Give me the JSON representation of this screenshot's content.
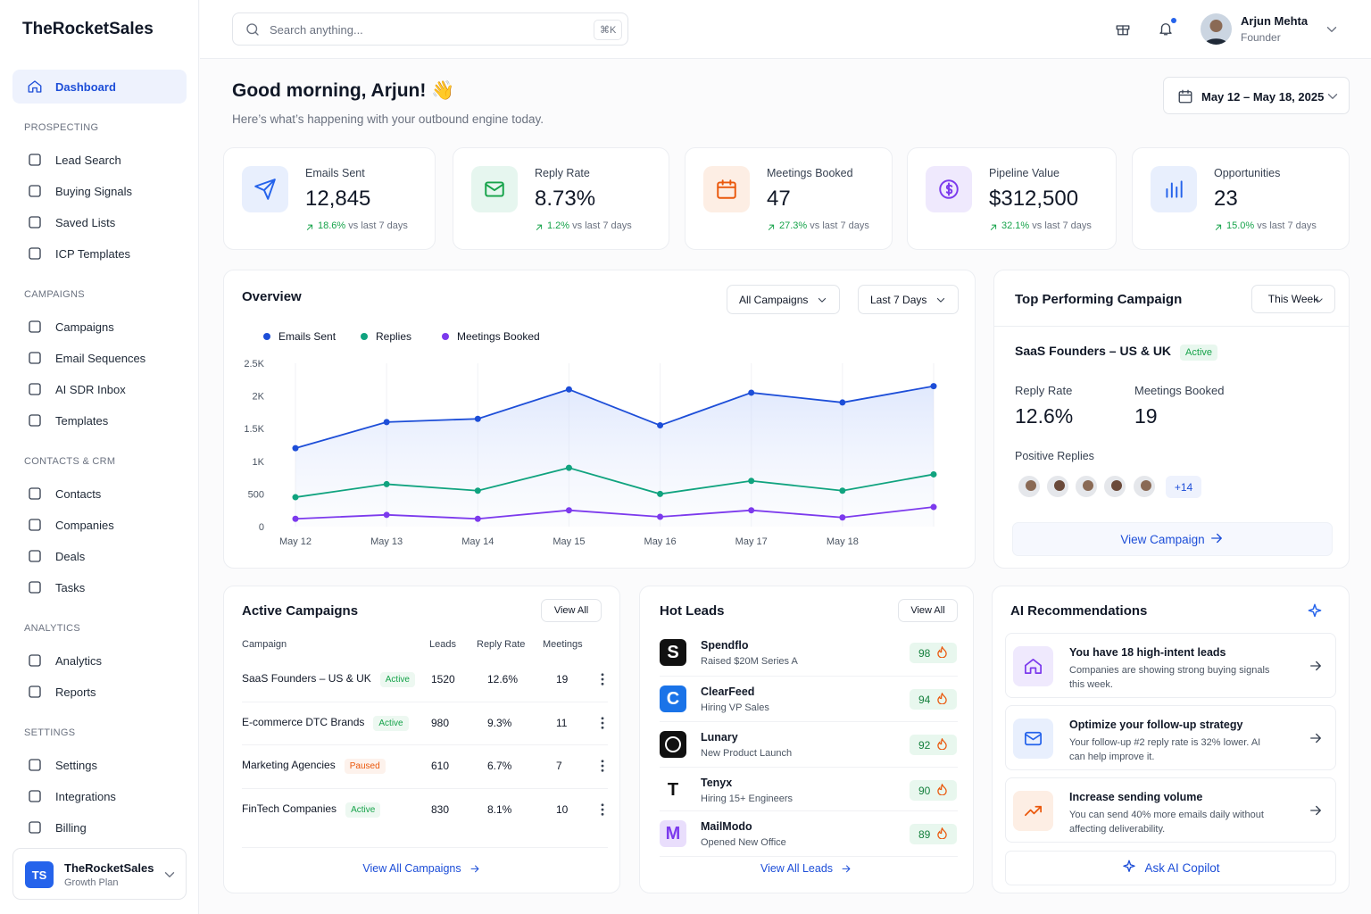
{
  "brand": "TheRocketSales",
  "nav": {
    "active": "Dashboard",
    "sections": [
      {
        "title": "PROSPECTING",
        "items": [
          "Lead Search",
          "Buying Signals",
          "Saved Lists",
          "ICP Templates"
        ]
      },
      {
        "title": "CAMPAIGNS",
        "items": [
          "Campaigns",
          "Email Sequences",
          "AI SDR Inbox",
          "Templates"
        ]
      },
      {
        "title": "CONTACTS & CRM",
        "items": [
          "Contacts",
          "Companies",
          "Deals",
          "Tasks"
        ]
      },
      {
        "title": "ANALYTICS",
        "items": [
          "Analytics",
          "Reports"
        ]
      },
      {
        "title": "SETTINGS",
        "items": [
          "Settings",
          "Integrations",
          "Billing"
        ]
      }
    ]
  },
  "workspace": {
    "initials": "TS",
    "name": "TheRocketSales",
    "plan": "Growth Plan"
  },
  "topbar": {
    "search_placeholder": "Search anything...",
    "shortcut": "⌘K",
    "user": {
      "name": "Arjun Mehta",
      "role": "Founder"
    }
  },
  "header": {
    "greeting": "Good morning, Arjun! 👋",
    "subtitle": "Here’s what’s happening with your outbound engine today.",
    "date_range": "May 12 – May 18, 2025"
  },
  "kpis": [
    {
      "label": "Emails Sent",
      "value": "12,845",
      "change": "18.6%",
      "period": "vs last 7 days"
    },
    {
      "label": "Reply Rate",
      "value": "8.73%",
      "change": "1.2%",
      "period": "vs last 7 days"
    },
    {
      "label": "Meetings Booked",
      "value": "47",
      "change": "27.3%",
      "period": "vs last 7 days"
    },
    {
      "label": "Pipeline Value",
      "value": "$312,500",
      "change": "32.1%",
      "period": "vs last 7 days"
    },
    {
      "label": "Opportunities",
      "value": "23",
      "change": "15.0%",
      "period": "vs last 7 days"
    }
  ],
  "overview": {
    "title": "Overview",
    "filters": [
      "All Campaigns",
      "Last 7 Days"
    ]
  },
  "chart_data": {
    "type": "line",
    "categories": [
      "May 12",
      "May 13",
      "May 14",
      "May 15",
      "May 16",
      "May 17",
      "May 18",
      null
    ],
    "series": [
      {
        "name": "Emails Sent",
        "color": "#1d4ed8",
        "values": [
          1200,
          1600,
          1650,
          2100,
          1550,
          2050,
          1900,
          2150
        ]
      },
      {
        "name": "Replies",
        "color": "#10a37f",
        "values": [
          450,
          650,
          550,
          900,
          500,
          700,
          550,
          800
        ]
      },
      {
        "name": "Meetings Booked",
        "color": "#7c3aed",
        "values": [
          120,
          180,
          120,
          250,
          150,
          250,
          140,
          300
        ]
      }
    ],
    "ylim": [
      0,
      2500
    ],
    "yticks": [
      0,
      500,
      {
        "value": 1000,
        "label": "1K"
      },
      {
        "value": 1500,
        "label": "1.5K"
      },
      {
        "value": 2000,
        "label": "2K"
      },
      {
        "value": 2500,
        "label": "2.5K"
      }
    ]
  },
  "top_campaign": {
    "title": "Top Performing Campaign",
    "period": "This Week",
    "name": "SaaS Founders – US & UK",
    "status": "Active",
    "metrics": [
      {
        "label": "Reply Rate",
        "value": "12.6%"
      },
      {
        "label": "Meetings Booked",
        "value": "19"
      }
    ],
    "replies_label": "Positive Replies",
    "more_replies": "+14",
    "action": "View Campaign"
  },
  "active_campaigns": {
    "title": "Active Campaigns",
    "action": "View All",
    "columns": [
      "Campaign",
      "Leads",
      "Reply Rate",
      "Meetings"
    ],
    "rows": [
      {
        "name": "SaaS Founders – US & UK",
        "status": "Active",
        "badge_color": "#16a34a",
        "leads": 1520,
        "reply_rate": "12.6%",
        "meetings": 19
      },
      {
        "name": "E-commerce DTC Brands",
        "status": "Active",
        "badge_color": "#16a34a",
        "leads": 980,
        "reply_rate": "9.3%",
        "meetings": 11
      },
      {
        "name": "Marketing Agencies",
        "status": "Paused",
        "badge_color": "#ea580c",
        "leads": 610,
        "reply_rate": "6.7%",
        "meetings": 7
      },
      {
        "name": "FinTech Companies",
        "status": "Active",
        "badge_color": "#16a34a",
        "leads": 830,
        "reply_rate": "8.1%",
        "meetings": 10
      }
    ],
    "footer": "View All Campaigns"
  },
  "hot_leads": {
    "title": "Hot Leads",
    "action": "View All",
    "leads": [
      {
        "logo": "S",
        "logo_color": "#111111",
        "name": "Spendflo",
        "detail": "Raised $20M Series A",
        "score": 98
      },
      {
        "logo": "C",
        "logo_color": "#1a73e8",
        "name": "ClearFeed",
        "detail": "Hiring VP Sales",
        "score": 94
      },
      {
        "logo_color": "#111111",
        "name": "Lunary",
        "detail": "New Product Launch",
        "score": 92
      },
      {
        "logo": "T",
        "logo_color": "#ffffff",
        "name": "Tenyx",
        "detail": "Hiring 15+ Engineers",
        "score": 90
      },
      {
        "logo": "M",
        "logo_color": "#e9defc",
        "name": "MailModo",
        "detail": "Opened New Office",
        "score": 89
      }
    ],
    "footer": "View All Leads"
  },
  "ai_recommendations": {
    "title": "AI Recommendations",
    "items": [
      {
        "title": "You have 18 high-intent leads",
        "text": "Companies are showing strong buying signals this week."
      },
      {
        "title": "Optimize your follow-up strategy",
        "text": "Your follow-up #2 reply rate is 32% lower. AI can help improve it."
      },
      {
        "title": "Increase sending volume",
        "text": "You can send 40% more emails daily without affecting deliverability."
      }
    ],
    "action": "Ask AI Copilot"
  }
}
